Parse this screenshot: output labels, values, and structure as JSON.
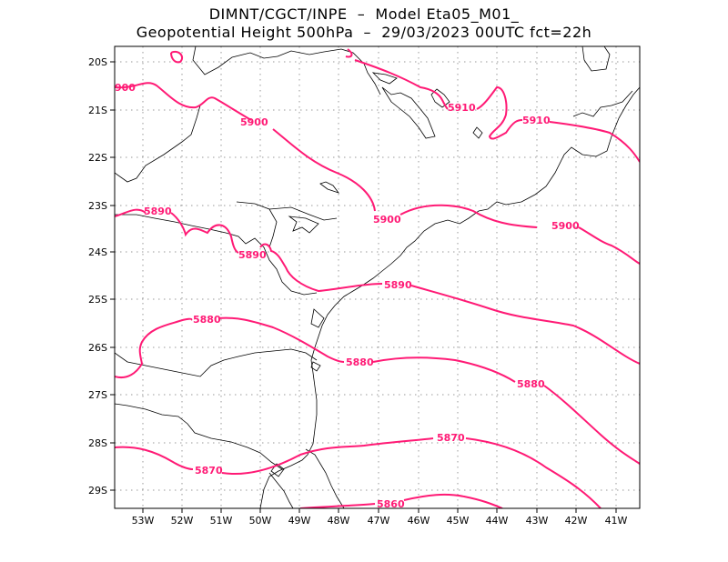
{
  "title": {
    "line1": "DIMNT/CGCT/INPE  –  Model Eta05_M01_",
    "line2": "Geopotential Height 500hPa  –  29/03/2023 00UTC fct=22h"
  },
  "axes": {
    "lon_labels": [
      "53W",
      "52W",
      "51W",
      "50W",
      "49W",
      "48W",
      "47W",
      "46W",
      "45W",
      "44W",
      "43W",
      "42W",
      "41W"
    ],
    "lat_labels": [
      "20S",
      "21S",
      "22S",
      "23S",
      "24S",
      "25S",
      "26S",
      "27S",
      "28S",
      "29S"
    ]
  },
  "contour_labels": [
    {
      "id": "c5910a",
      "text": "5910"
    },
    {
      "id": "c5910b",
      "text": "5910"
    },
    {
      "id": "c5900a",
      "text": "5900"
    },
    {
      "id": "c5900b",
      "text": "5900"
    },
    {
      "id": "c5900c",
      "text": "5900"
    },
    {
      "id": "c5900d",
      "text": "900"
    },
    {
      "id": "c5890a",
      "text": "5890"
    },
    {
      "id": "c5890b",
      "text": "5890"
    },
    {
      "id": "c5890c",
      "text": "5890"
    },
    {
      "id": "c5880a",
      "text": "5880"
    },
    {
      "id": "c5880b",
      "text": "5880"
    },
    {
      "id": "c5880c",
      "text": "5880"
    },
    {
      "id": "c5870a",
      "text": "5870"
    },
    {
      "id": "c5870b",
      "text": "5870"
    },
    {
      "id": "c5860a",
      "text": "5860"
    }
  ],
  "colors": {
    "contour": "#ff1a75",
    "coast": "#000000",
    "grid": "#999999"
  }
}
